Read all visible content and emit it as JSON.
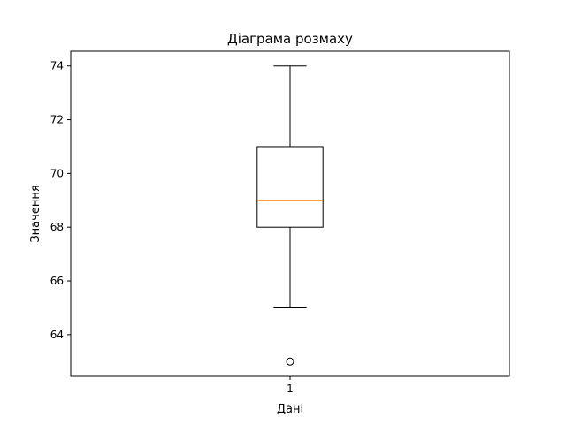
{
  "chart_data": {
    "type": "box",
    "title": "Діаграма розмаху",
    "xlabel": "Дані",
    "ylabel": "Значення",
    "categories": [
      "1"
    ],
    "ylim": [
      62.45,
      74.55
    ],
    "yticks": [
      64,
      66,
      68,
      70,
      72,
      74
    ],
    "boxes": [
      {
        "category": "1",
        "whisker_low": 65,
        "q1": 68,
        "median": 69,
        "q3": 71,
        "whisker_high": 74,
        "outliers": [
          63
        ]
      }
    ],
    "grid": false,
    "colors": {
      "box": "#000000",
      "median": "#ff7f0e",
      "outlier_edge": "#000000"
    }
  }
}
